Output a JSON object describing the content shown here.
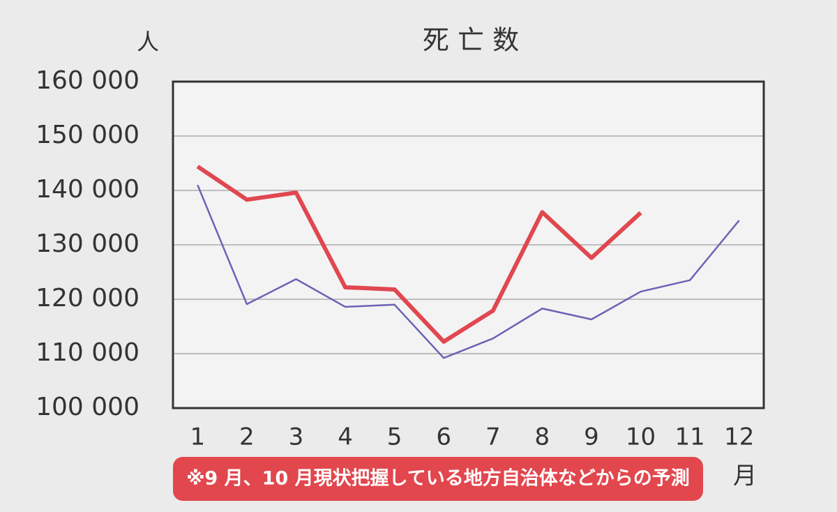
{
  "chart_data": {
    "type": "line",
    "title": "死 亡 数",
    "y_unit_label": "人",
    "x_unit_label": "月",
    "annotation": "※9 月、10 月現状把握している地方自治体などからの予測",
    "categories": [
      "1",
      "2",
      "3",
      "4",
      "5",
      "6",
      "7",
      "8",
      "9",
      "10",
      "11",
      "12"
    ],
    "series": [
      {
        "color": "#6a63b5",
        "width": 2.5,
        "values": [
          141000,
          119100,
          123700,
          118600,
          119000,
          109200,
          112800,
          118300,
          116300,
          121400,
          123500,
          134500
        ]
      },
      {
        "color": "#e0474f",
        "width": 6,
        "values": [
          144400,
          138300,
          139600,
          122200,
          121800,
          112200,
          117900,
          136000,
          127600,
          135900,
          null,
          null
        ]
      }
    ],
    "ylim": [
      100000,
      160000
    ],
    "yticks": [
      {
        "value": 100000,
        "label": "100 000"
      },
      {
        "value": 110000,
        "label": "110 000"
      },
      {
        "value": 120000,
        "label": "120 000"
      },
      {
        "value": 130000,
        "label": "130 000"
      },
      {
        "value": 140000,
        "label": "140 000"
      },
      {
        "value": 150000,
        "label": "150 000"
      },
      {
        "value": 160000,
        "label": "160 000"
      }
    ],
    "grid": true
  }
}
